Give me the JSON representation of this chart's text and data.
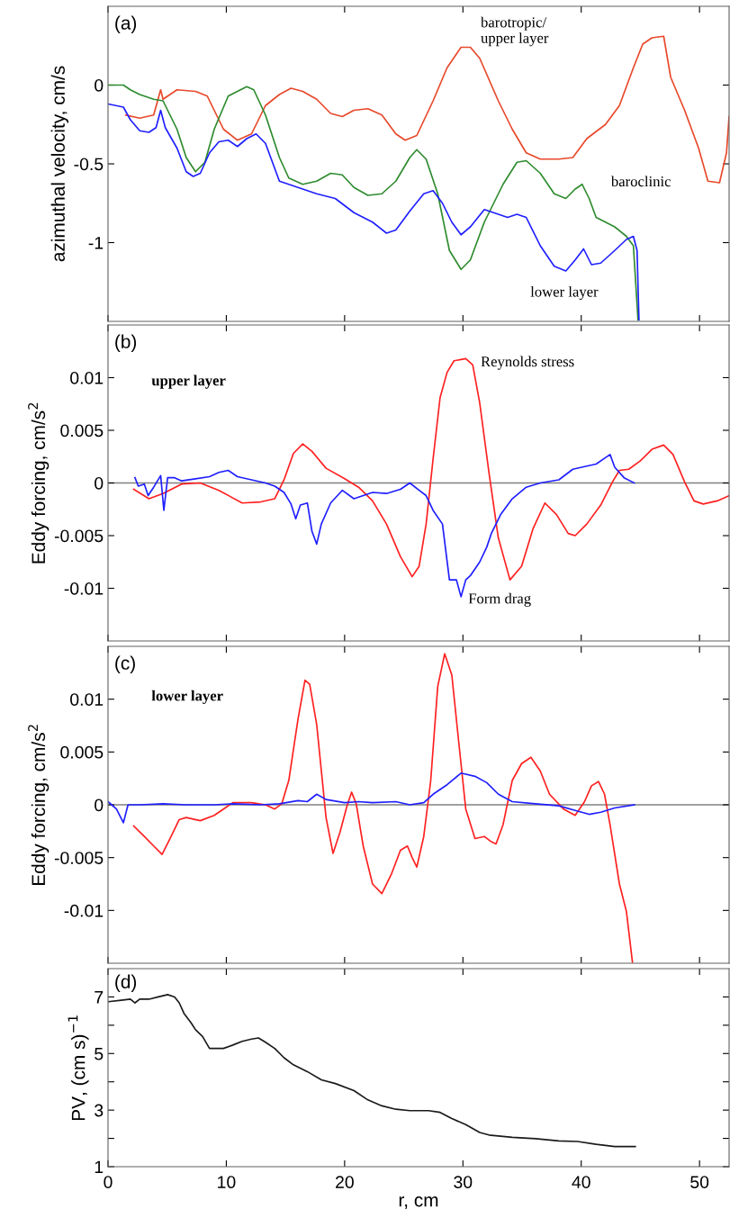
{
  "chart_data": [
    {
      "type": "line",
      "ylabel": "azimuthal velocity, cm/s",
      "annotations": [
        "(a)"
      ],
      "xlim": [
        0,
        52.5
      ],
      "xticks": [
        0,
        10,
        20,
        30,
        40,
        50
      ],
      "ylim": [
        -1.5,
        0.5
      ],
      "yticks": [
        -1,
        -0.5,
        0
      ],
      "tick_labels": "y",
      "grid": false,
      "legend": false,
      "series": [
        {
          "name": "barotropic/\nupper layer",
          "color": "#e8482a",
          "x": [
            1.5,
            2.68,
            3.86,
            4.45,
            4.65,
            5.83,
            7.4,
            8.39,
            9.76,
            10.94,
            12.13,
            13.31,
            14.49,
            15.47,
            16.46,
            17.64,
            18.82,
            19.8,
            20.79,
            21.97,
            23.15,
            24.33,
            25.12,
            26.1,
            27.48,
            28.66,
            29.84,
            30.63,
            31.42,
            32.99,
            34.17,
            35.35,
            36.54,
            38.11,
            39.29,
            40.47,
            42.05,
            43.23,
            44.41,
            45.2,
            45.98,
            46.97,
            47.56,
            48.74,
            49.92,
            50.71,
            51.69,
            52.28,
            52.5
          ],
          "values": [
            -0.19,
            -0.21,
            -0.19,
            -0.03,
            -0.09,
            -0.03,
            -0.04,
            -0.07,
            -0.28,
            -0.35,
            -0.31,
            -0.13,
            -0.06,
            -0.02,
            -0.04,
            -0.09,
            -0.18,
            -0.2,
            -0.16,
            -0.15,
            -0.19,
            -0.31,
            -0.35,
            -0.32,
            -0.1,
            0.11,
            0.24,
            0.24,
            0.17,
            -0.1,
            -0.28,
            -0.43,
            -0.47,
            -0.47,
            -0.46,
            -0.34,
            -0.25,
            -0.13,
            0.11,
            0.26,
            0.3,
            0.31,
            0.05,
            -0.16,
            -0.4,
            -0.61,
            -0.62,
            -0.43,
            -0.2
          ]
        },
        {
          "name": "baroclinic",
          "color": "#2e8b2e",
          "x": [
            0,
            1.3,
            1.89,
            2.68,
            3.86,
            4.65,
            5.83,
            6.61,
            7.4,
            8.19,
            8.98,
            10.16,
            10.94,
            11.73,
            12.32,
            13.31,
            14.49,
            15.28,
            16.46,
            17.64,
            18.82,
            19.8,
            20.79,
            21.97,
            23.15,
            24.33,
            25.51,
            26.1,
            26.89,
            27.87,
            28.86,
            29.84,
            30.63,
            31.81,
            33.39,
            34.57,
            35.35,
            36.54,
            37.72,
            38.7,
            39.49,
            40.08,
            40.67,
            41.26,
            42.05,
            42.83,
            43.82,
            44.41,
            44.8
          ],
          "values": [
            0,
            0,
            -0.03,
            -0.06,
            -0.09,
            -0.1,
            -0.28,
            -0.46,
            -0.55,
            -0.49,
            -0.28,
            -0.07,
            -0.04,
            -0.01,
            -0.03,
            -0.19,
            -0.46,
            -0.59,
            -0.63,
            -0.61,
            -0.56,
            -0.57,
            -0.65,
            -0.7,
            -0.69,
            -0.61,
            -0.46,
            -0.41,
            -0.47,
            -0.69,
            -1.05,
            -1.17,
            -1.11,
            -0.87,
            -0.63,
            -0.49,
            -0.48,
            -0.56,
            -0.69,
            -0.72,
            -0.66,
            -0.63,
            -0.72,
            -0.84,
            -0.87,
            -0.9,
            -0.96,
            -1.02,
            -1.49
          ]
        },
        {
          "name": "lower layer",
          "color": "#1f1fff",
          "x": [
            0,
            1.3,
            1.89,
            2.68,
            3.46,
            4.06,
            4.45,
            4.84,
            5.83,
            6.61,
            7.2,
            7.8,
            8.58,
            9.37,
            10.16,
            10.94,
            11.73,
            12.52,
            13.31,
            14.49,
            15.28,
            16.46,
            17.64,
            19.21,
            20.79,
            22.36,
            23.54,
            24.33,
            25.51,
            26.69,
            27.48,
            28.27,
            29.06,
            29.84,
            30.63,
            31.81,
            32.6,
            33.78,
            34.57,
            35.35,
            36.54,
            37.72,
            38.7,
            39.49,
            40.2,
            40.87,
            41.65,
            42.83,
            43.82,
            44.41,
            44.72,
            44.88
          ],
          "values": [
            -0.12,
            -0.14,
            -0.22,
            -0.29,
            -0.3,
            -0.27,
            -0.16,
            -0.27,
            -0.4,
            -0.55,
            -0.58,
            -0.56,
            -0.43,
            -0.36,
            -0.35,
            -0.39,
            -0.34,
            -0.31,
            -0.37,
            -0.61,
            -0.63,
            -0.66,
            -0.69,
            -0.72,
            -0.81,
            -0.87,
            -0.94,
            -0.92,
            -0.8,
            -0.69,
            -0.67,
            -0.75,
            -0.87,
            -0.95,
            -0.9,
            -0.79,
            -0.81,
            -0.84,
            -0.82,
            -0.84,
            -1.02,
            -1.15,
            -1.18,
            -1.11,
            -1.04,
            -1.14,
            -1.13,
            -1.05,
            -0.98,
            -0.96,
            -1.05,
            -1.49
          ]
        }
      ]
    },
    {
      "type": "line",
      "ylabel": "Eddy forcing, cm/s$^{2}$",
      "annotations": [
        "(b)",
        "upper layer"
      ],
      "xlim": [
        0,
        52.5
      ],
      "xticks": [
        0,
        10,
        20,
        30,
        40,
        50
      ],
      "ylim": [
        -0.015,
        0.015
      ],
      "yticks": [
        -0.01,
        -0.005,
        0,
        0.005,
        0.01
      ],
      "tick_labels": "y",
      "grid": false,
      "legend": false,
      "ref_lines": [
        {
          "axis": "y",
          "value": 0,
          "color": "#808080"
        }
      ],
      "series": [
        {
          "name": "Reynolds stress",
          "color": "#ff2020",
          "x": [
            2.17,
            3.46,
            4.65,
            6.22,
            7.8,
            9.37,
            11.34,
            12.91,
            14.09,
            14.88,
            15.67,
            16.46,
            17.24,
            18.43,
            20,
            21.18,
            22.36,
            23.54,
            24.72,
            25.71,
            26.3,
            26.89,
            27.48,
            28.07,
            28.66,
            29.25,
            30.24,
            30.83,
            31.42,
            32.2,
            32.99,
            33.98,
            34.96,
            35.94,
            36.93,
            37.91,
            38.9,
            39.49,
            40.47,
            41.65,
            42.64,
            43.23,
            44.02,
            45,
            45.98,
            46.97,
            47.76,
            48.74,
            49.53,
            50.31,
            51.5,
            52.5
          ],
          "values": [
            -0.0006,
            -0.0015,
            -0.001,
            -0.0001,
            0,
            -0.0007,
            -0.0019,
            -0.0018,
            -0.0015,
            0.0003,
            0.0028,
            0.0037,
            0.003,
            0.0014,
            0.0004,
            -0.0004,
            -0.0017,
            -0.0039,
            -0.007,
            -0.0089,
            -0.0079,
            -0.0039,
            0.0023,
            0.0081,
            0.0105,
            0.0116,
            0.0118,
            0.0112,
            0.0076,
            0.001,
            -0.0052,
            -0.0092,
            -0.0079,
            -0.0043,
            -0.0019,
            -0.003,
            -0.0048,
            -0.005,
            -0.0039,
            -0.0021,
            0.0001,
            0.0012,
            0.0013,
            0.0021,
            0.0032,
            0.0036,
            0.0027,
            0.0001,
            -0.0017,
            -0.002,
            -0.0017,
            -0.0012
          ]
        },
        {
          "name": "Form drag",
          "color": "#1f1fff",
          "x": [
            2.28,
            2.56,
            3.07,
            3.39,
            3.86,
            4.45,
            4.72,
            5.04,
            5.63,
            6.22,
            7.4,
            8.58,
            9.37,
            10.16,
            10.94,
            12.13,
            13.31,
            14.09,
            14.88,
            15.47,
            15.87,
            16.26,
            16.85,
            17.24,
            17.64,
            18.03,
            18.82,
            19.8,
            20.79,
            21.57,
            22.36,
            23.54,
            24.72,
            25.51,
            26.3,
            26.89,
            27.48,
            28.27,
            28.86,
            29.45,
            29.84,
            30.24,
            30.63,
            31.42,
            32.01,
            32.4,
            33.19,
            34.17,
            35.35,
            36.54,
            38.11,
            39.29,
            40.47,
            41.26,
            42.05,
            42.44,
            42.83,
            43.62,
            44.49
          ],
          "values": [
            0.0005,
            -0.0003,
            -0.0001,
            -0.0012,
            -0.0004,
            0.0007,
            -0.0026,
            0.0005,
            0.0005,
            0.0002,
            0.0004,
            0.0006,
            0.001,
            0.0012,
            0.0006,
            0.0003,
            0,
            -0.0003,
            -0.0009,
            -0.002,
            -0.0034,
            -0.0021,
            -0.0019,
            -0.0046,
            -0.0058,
            -0.0039,
            -0.0019,
            -0.0007,
            -0.0015,
            -0.0012,
            -0.0009,
            -0.001,
            -0.0006,
            0,
            -0.0007,
            -0.0012,
            -0.0026,
            -0.0039,
            -0.0092,
            -0.0092,
            -0.0108,
            -0.0092,
            -0.0088,
            -0.0075,
            -0.0061,
            -0.0048,
            -0.003,
            -0.0015,
            -0.0004,
            0,
            0.0003,
            0.0013,
            0.0016,
            0.0018,
            0.0024,
            0.0027,
            0.0015,
            0.0005,
            0
          ]
        }
      ]
    },
    {
      "type": "line",
      "ylabel": "Eddy forcing, cm/s$^{2}$",
      "annotations": [
        "(c)",
        "lower layer"
      ],
      "xlim": [
        0,
        52.5
      ],
      "xticks": [
        0,
        10,
        20,
        30,
        40,
        50
      ],
      "ylim": [
        -0.015,
        0.015
      ],
      "yticks": [
        -0.01,
        -0.005,
        0,
        0.005,
        0.01
      ],
      "tick_labels": "y",
      "grid": false,
      "legend": false,
      "ref_lines": [
        {
          "axis": "y",
          "value": 0,
          "color": "#808080"
        }
      ],
      "series": [
        {
          "color": "#ff2020",
          "x": [
            2.17,
            3.07,
            3.86,
            4.57,
            5.24,
            6.02,
            6.61,
            7.8,
            8.98,
            9.76,
            10.55,
            12.13,
            13.31,
            14.09,
            14.69,
            15.28,
            16.06,
            16.65,
            17.05,
            17.64,
            18.43,
            19.02,
            19.61,
            20.2,
            20.59,
            20.98,
            21.57,
            22.36,
            23.15,
            23.94,
            24.72,
            25.31,
            25.71,
            26.1,
            26.69,
            27.28,
            27.87,
            28.46,
            29.06,
            29.65,
            30.24,
            31.02,
            31.81,
            32.4,
            32.8,
            33.39,
            34.17,
            34.96,
            35.75,
            36.54,
            37.32,
            38.5,
            39.49,
            40.28,
            40.87,
            41.46,
            41.97,
            42.44,
            43.23,
            43.82,
            44.33
          ],
          "values": [
            -0.002,
            -0.003,
            -0.0039,
            -0.0047,
            -0.0032,
            -0.0014,
            -0.0012,
            -0.0015,
            -0.001,
            -0.0004,
            0.0002,
            0.0002,
            0,
            -0.0004,
            0.0001,
            0.0023,
            0.0081,
            0.0118,
            0.0114,
            0.0076,
            -0.0012,
            -0.0046,
            -0.0026,
            -0.0001,
            0.0012,
            0.0001,
            -0.0039,
            -0.0075,
            -0.0084,
            -0.0066,
            -0.0043,
            -0.0039,
            -0.005,
            -0.0059,
            -0.003,
            0.0023,
            0.0112,
            0.0143,
            0.0123,
            0.0059,
            -0.0004,
            -0.0032,
            -0.003,
            -0.0035,
            -0.0037,
            -0.0019,
            0.0023,
            0.0039,
            0.0045,
            0.0032,
            0.001,
            -0.0004,
            -0.001,
            0.0003,
            0.0018,
            0.0022,
            0.001,
            -0.0019,
            -0.0075,
            -0.0101,
            -0.0149
          ]
        },
        {
          "color": "#1f1fff",
          "x": [
            0,
            0.31,
            0.71,
            1.3,
            1.69,
            2.68,
            4.65,
            6.61,
            8.98,
            10.55,
            12.91,
            14.49,
            16.06,
            16.85,
            17.64,
            18.43,
            20,
            21.18,
            22.36,
            24.33,
            25.51,
            26.69,
            27.48,
            28.66,
            29.84,
            31.02,
            32.01,
            33,
            34.17,
            36.14,
            38.11,
            39.69,
            40.67,
            41.65,
            42.83,
            44.49
          ],
          "values": [
            0.0003,
            0,
            -0.0004,
            -0.0017,
            0,
            0,
            0.0001,
            0,
            0,
            0.0001,
            0,
            0.0001,
            0.0004,
            0.0003,
            0.001,
            0.0005,
            0.0002,
            0.0003,
            0.0002,
            0.0003,
            0,
            0.0002,
            0.001,
            0.0019,
            0.003,
            0.0027,
            0.0021,
            0.001,
            0.0003,
            0.0001,
            -0.0001,
            -0.0006,
            -0.0009,
            -0.0007,
            -0.0003,
            0
          ]
        }
      ]
    },
    {
      "type": "line",
      "xlabel": "r, cm",
      "ylabel": "PV, (cm s)$^{−1}$",
      "annotations": [
        "(d)"
      ],
      "xlim": [
        0,
        52.5
      ],
      "xticks": [
        0,
        10,
        20,
        30,
        40,
        50
      ],
      "ylim": [
        1,
        8
      ],
      "yticks": [
        1,
        {
          "value": 2,
          "label": null
        },
        3,
        {
          "value": 4,
          "label": null
        },
        5,
        {
          "value": 6,
          "label": null
        },
        7
      ],
      "grid": false,
      "legend": false,
      "series": [
        {
          "color": "#1a1a1a",
          "x": [
            0,
            1.1,
            1.89,
            2.28,
            2.68,
            3.46,
            4.25,
            5.04,
            5.63,
            6.02,
            6.42,
            7.01,
            7.4,
            7.99,
            8.58,
            9.17,
            9.76,
            10.55,
            11.34,
            12.13,
            12.72,
            13.31,
            14.09,
            14.88,
            15.67,
            16.85,
            18.03,
            19.21,
            20.79,
            21.97,
            23.15,
            24.33,
            25.51,
            27.09,
            28.07,
            29.06,
            30.24,
            31.42,
            32.2,
            34.17,
            36.14,
            38.11,
            39.69,
            41.26,
            42.83,
            44.57
          ],
          "values": [
            6.83,
            6.88,
            6.92,
            6.79,
            6.92,
            6.92,
            7.0,
            7.08,
            7.0,
            6.79,
            6.42,
            6.09,
            5.84,
            5.6,
            5.18,
            5.18,
            5.18,
            5.3,
            5.43,
            5.51,
            5.55,
            5.4,
            5.18,
            4.85,
            4.6,
            4.36,
            4.07,
            3.94,
            3.69,
            3.36,
            3.15,
            3.03,
            2.98,
            2.98,
            2.92,
            2.7,
            2.49,
            2.21,
            2.12,
            2.04,
            1.99,
            1.91,
            1.89,
            1.79,
            1.71,
            1.71
          ]
        }
      ]
    }
  ]
}
